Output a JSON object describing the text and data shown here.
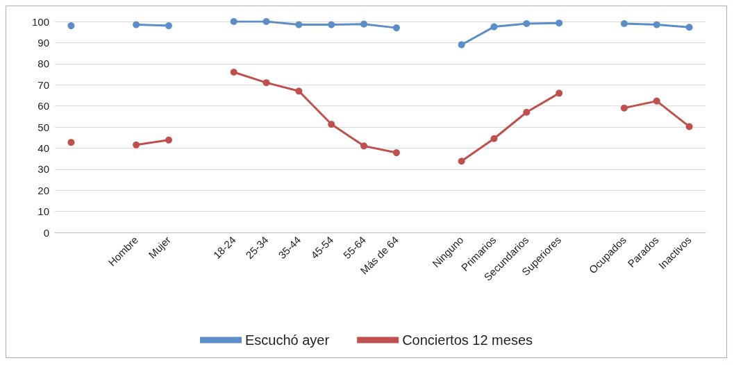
{
  "chart_data": {
    "type": "line",
    "categories": [
      null,
      null,
      "Hombre",
      "Mujer",
      null,
      "18-24",
      "25-34",
      "35-44",
      "45-54",
      "55-64",
      "Más de 64",
      null,
      "Ninguno",
      "Primarios",
      "Secundarios",
      "Superiores",
      null,
      "Ocupados",
      "Parados",
      "Inactivos"
    ],
    "series": [
      {
        "name": "Escuchó ayer",
        "color": "#5b8ec9",
        "values": [
          98,
          null,
          98.5,
          98,
          null,
          100,
          100,
          98.5,
          98.5,
          98.8,
          97,
          null,
          89,
          97.5,
          99,
          99.3,
          null,
          99,
          98.5,
          97.3
        ]
      },
      {
        "name": "Conciertos 12 meses",
        "color": "#c0504d",
        "values": [
          42.7,
          null,
          41.5,
          43.8,
          null,
          76,
          71,
          67,
          51.3,
          41,
          37.8,
          null,
          33.8,
          44.5,
          57,
          66,
          null,
          59,
          62.3,
          50.2
        ]
      }
    ],
    "ylim": [
      0,
      100
    ],
    "yticks": [
      0,
      10,
      20,
      30,
      40,
      50,
      60,
      70,
      80,
      90,
      100
    ],
    "grid": "y",
    "legend": "bottom",
    "marker": "circle",
    "line_style": "solid"
  }
}
